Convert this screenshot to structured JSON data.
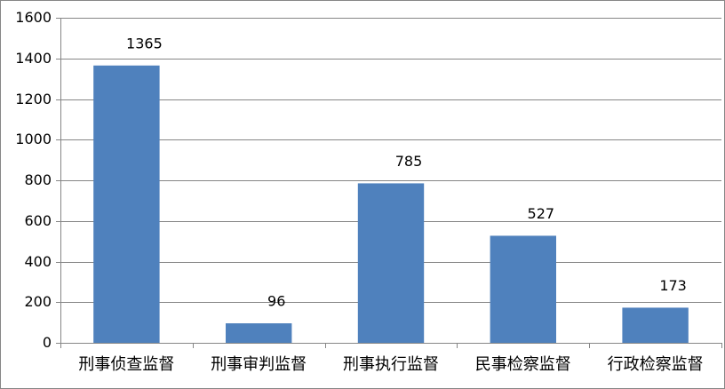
{
  "chart_data": {
    "type": "bar",
    "categories": [
      "刑事侦查监督",
      "刑事审判监督",
      "刑事执行监督",
      "民事检察监督",
      "行政检察监督"
    ],
    "values": [
      1365,
      96,
      785,
      527,
      173
    ],
    "color": "#4f81bd",
    "ylim": [
      0,
      1600
    ],
    "yticks": [
      0,
      200,
      400,
      600,
      800,
      1000,
      1200,
      1400,
      1600
    ],
    "grid": true
  }
}
